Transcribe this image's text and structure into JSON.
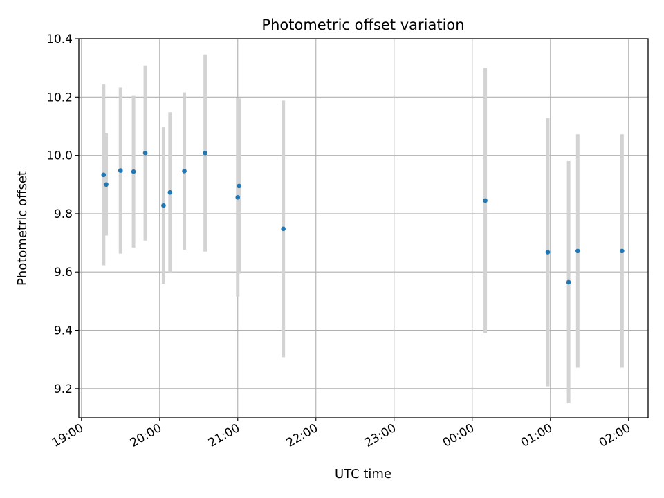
{
  "chart_data": {
    "type": "scatter",
    "title": "Photometric offset variation",
    "xlabel": "UTC time",
    "ylabel": "Photometric offset",
    "x_ticks": [
      "19:00",
      "20:00",
      "21:00",
      "22:00",
      "23:00",
      "00:00",
      "01:00",
      "02:00"
    ],
    "y_ticks": [
      "9.2",
      "9.4",
      "9.6",
      "9.8",
      "10.0",
      "10.2",
      "10.4"
    ],
    "xlim": [
      "18:58",
      "02:15"
    ],
    "ylim": [
      9.1,
      10.4
    ],
    "grid": true,
    "colors": {
      "point": "#1f77b4",
      "errorbar": "#d3d3d3",
      "grid": "#b0b0b0"
    },
    "points": [
      {
        "x": "19:17",
        "y": 9.933,
        "yerr": 0.31
      },
      {
        "x": "19:19",
        "y": 9.9,
        "yerr": 0.175
      },
      {
        "x": "19:30",
        "y": 9.948,
        "yerr": 0.285
      },
      {
        "x": "19:40",
        "y": 9.944,
        "yerr": 0.26
      },
      {
        "x": "19:49",
        "y": 10.008,
        "yerr": 0.3
      },
      {
        "x": "20:03",
        "y": 9.828,
        "yerr": 0.268
      },
      {
        "x": "20:08",
        "y": 9.873,
        "yerr": 0.275
      },
      {
        "x": "20:19",
        "y": 9.946,
        "yerr": 0.27
      },
      {
        "x": "20:35",
        "y": 10.008,
        "yerr": 0.338
      },
      {
        "x": "21:00",
        "y": 9.856,
        "yerr": 0.34
      },
      {
        "x": "21:01",
        "y": 9.895,
        "yerr": 0.3
      },
      {
        "x": "21:35",
        "y": 9.748,
        "yerr": 0.44
      },
      {
        "x": "00:10",
        "y": 9.845,
        "yerr": 0.455
      },
      {
        "x": "00:58",
        "y": 9.668,
        "yerr": 0.46
      },
      {
        "x": "01:14",
        "y": 9.565,
        "yerr": 0.415
      },
      {
        "x": "01:21",
        "y": 9.672,
        "yerr": 0.4
      },
      {
        "x": "01:55",
        "y": 9.672,
        "yerr": 0.4
      }
    ]
  }
}
